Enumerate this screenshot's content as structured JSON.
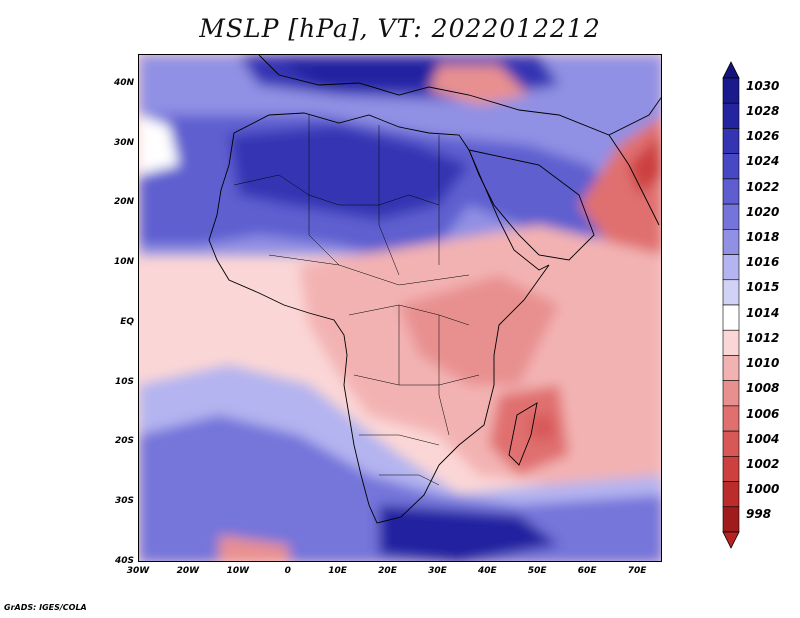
{
  "title": "MSLP [hPa], VT: 2022012212",
  "footer": "GrADS: IGES/COLA",
  "map": {
    "extent": {
      "lon_min": -30,
      "lon_max": 75,
      "lat_min": -40,
      "lat_max": 45
    },
    "lat_ticks": [
      {
        "label": "40N",
        "lat": 40
      },
      {
        "label": "30N",
        "lat": 30
      },
      {
        "label": "20N",
        "lat": 20
      },
      {
        "label": "10N",
        "lat": 10
      },
      {
        "label": "EQ",
        "lat": 0
      },
      {
        "label": "10S",
        "lat": -10
      },
      {
        "label": "20S",
        "lat": -20
      },
      {
        "label": "30S",
        "lat": -30
      },
      {
        "label": "40S",
        "lat": -40
      }
    ],
    "lon_ticks": [
      {
        "label": "30W",
        "lon": -30
      },
      {
        "label": "20W",
        "lon": -20
      },
      {
        "label": "10W",
        "lon": -10
      },
      {
        "label": "0",
        "lon": 0
      },
      {
        "label": "10E",
        "lon": 10
      },
      {
        "label": "20E",
        "lon": 20
      },
      {
        "label": "30E",
        "lon": 30
      },
      {
        "label": "40E",
        "lon": 40
      },
      {
        "label": "50E",
        "lon": 50
      },
      {
        "label": "60E",
        "lon": 60
      },
      {
        "label": "70E",
        "lon": 70
      }
    ]
  },
  "colorbar": {
    "unit": "hPa",
    "levels": [
      {
        "label": "1030",
        "color": "#1a1a8c"
      },
      {
        "label": "1028",
        "color": "#2424a0"
      },
      {
        "label": "1026",
        "color": "#3535b4"
      },
      {
        "label": "1024",
        "color": "#4848c4"
      },
      {
        "label": "1022",
        "color": "#5e5ed0"
      },
      {
        "label": "1020",
        "color": "#7474da"
      },
      {
        "label": "1018",
        "color": "#9090e4"
      },
      {
        "label": "1016",
        "color": "#b4b4f0"
      },
      {
        "label": "1015",
        "color": "#d2d2f7"
      },
      {
        "label": "1014",
        "color": "#ffffff"
      },
      {
        "label": "1012",
        "color": "#fbd6d6"
      },
      {
        "label": "1010",
        "color": "#f3b2b2"
      },
      {
        "label": "1008",
        "color": "#e89090"
      },
      {
        "label": "1006",
        "color": "#e07070"
      },
      {
        "label": "1004",
        "color": "#d85858"
      },
      {
        "label": "1002",
        "color": "#cc4040"
      },
      {
        "label": "1000",
        "color": "#bb2c2c"
      },
      {
        "label": "998",
        "color": "#a01c1c"
      }
    ],
    "top_cap_color": "#14147a",
    "bottom_cap_color": "#b82222"
  }
}
